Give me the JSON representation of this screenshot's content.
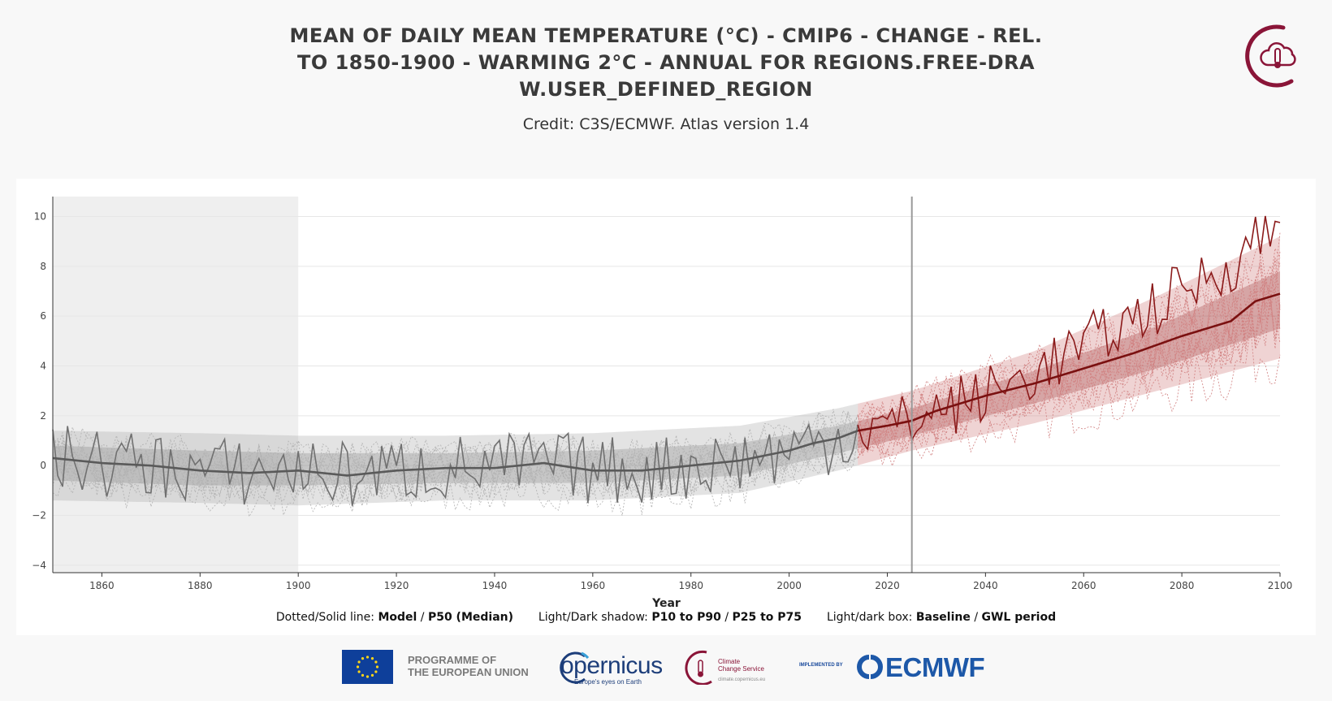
{
  "title_lines": [
    "MEAN OF DAILY MEAN TEMPERATURE (°C) - CMIP6 - CHANGE - REL.",
    "TO 1850-1900 - WARMING 2°C - ANNUAL FOR REGIONS.FREE-DRA",
    "W.USER_DEFINED_REGION"
  ],
  "credit": "Credit: C3S/ECMWF. Atlas version 1.4",
  "legend": {
    "lines_label": "Dotted/Solid line:",
    "lines_model": "Model",
    "lines_sep": "/",
    "lines_median": "P50 (Median)",
    "shadow_label": "Light/Dark shadow:",
    "shadow_p10": "P10 to P90",
    "shadow_sep": "/",
    "shadow_p25": "P25 to P75",
    "box_label": "Light/dark box:",
    "box_baseline": "Baseline",
    "box_sep": "/",
    "box_gwl": "GWL period"
  },
  "footer": {
    "eu_line1": "PROGRAMME OF",
    "eu_line2": "THE EUROPEAN UNION",
    "copernicus": "opernicus",
    "copernicus_sub": "Europe's eyes on Earth",
    "c3s_line1": "Climate",
    "c3s_line2": "Change Service",
    "c3s_url": "climate.copernicus.eu",
    "implemented_by": "IMPLEMENTED BY",
    "ecmwf": "ECMWF"
  },
  "colors": {
    "historical": "#707070",
    "historical_light": "#b0b0b0",
    "projection": "#8b1a1a",
    "projection_light": "#d08080",
    "baseline_box": "#efefef",
    "marker_line": "#999999",
    "brand": "#8a1538"
  },
  "chart_data": {
    "type": "line",
    "xlabel": "Year",
    "ylabel": "",
    "xlim": [
      1850,
      2100
    ],
    "ylim": [
      -4.3,
      10.8
    ],
    "xticks": [
      1860,
      1880,
      1900,
      1920,
      1940,
      1960,
      1980,
      2000,
      2020,
      2040,
      2060,
      2080,
      2100
    ],
    "yticks": [
      -4,
      -2,
      0,
      2,
      4,
      6,
      8,
      10
    ],
    "grid": true,
    "baseline_period": [
      1850,
      1900
    ],
    "gwl_year": 2025,
    "historical_end": 2014,
    "series": [
      {
        "name": "P50 (Median)",
        "x": [
          1850,
          1860,
          1870,
          1880,
          1890,
          1900,
          1910,
          1920,
          1930,
          1940,
          1950,
          1960,
          1970,
          1980,
          1990,
          2000,
          2005,
          2010,
          2014,
          2020,
          2025,
          2030,
          2040,
          2050,
          2060,
          2070,
          2080,
          2090,
          2095,
          2100
        ],
        "values": [
          0.3,
          0.1,
          0.0,
          -0.2,
          -0.3,
          -0.2,
          -0.4,
          -0.2,
          -0.1,
          -0.1,
          0.1,
          -0.2,
          -0.2,
          0.0,
          0.2,
          0.6,
          0.9,
          1.1,
          1.4,
          1.6,
          1.8,
          2.2,
          2.8,
          3.3,
          3.9,
          4.5,
          5.2,
          5.8,
          6.6,
          6.9
        ]
      },
      {
        "name": "P10",
        "x": [
          1850,
          1880,
          1900,
          1930,
          1960,
          1990,
          2010,
          2025,
          2050,
          2075,
          2100
        ],
        "values": [
          -1.4,
          -1.5,
          -1.6,
          -1.4,
          -1.4,
          -1.1,
          -0.2,
          0.6,
          1.7,
          3.0,
          4.3
        ]
      },
      {
        "name": "P90",
        "x": [
          1850,
          1880,
          1900,
          1930,
          1960,
          1990,
          2010,
          2025,
          2050,
          2075,
          2100
        ],
        "values": [
          1.4,
          1.3,
          1.2,
          1.2,
          1.3,
          1.6,
          2.3,
          3.0,
          4.6,
          6.8,
          9.2
        ]
      },
      {
        "name": "P25",
        "x": [
          1850,
          1880,
          1900,
          1930,
          1960,
          1990,
          2010,
          2025,
          2050,
          2075,
          2100
        ],
        "values": [
          -0.6,
          -0.8,
          -0.8,
          -0.7,
          -0.7,
          -0.4,
          0.5,
          1.2,
          2.5,
          3.9,
          5.5
        ]
      },
      {
        "name": "P75",
        "x": [
          1850,
          1880,
          1900,
          1930,
          1960,
          1990,
          2010,
          2025,
          2050,
          2075,
          2100
        ],
        "values": [
          0.8,
          0.6,
          0.5,
          0.5,
          0.6,
          0.9,
          1.6,
          2.3,
          3.8,
          5.6,
          7.8
        ]
      }
    ]
  }
}
